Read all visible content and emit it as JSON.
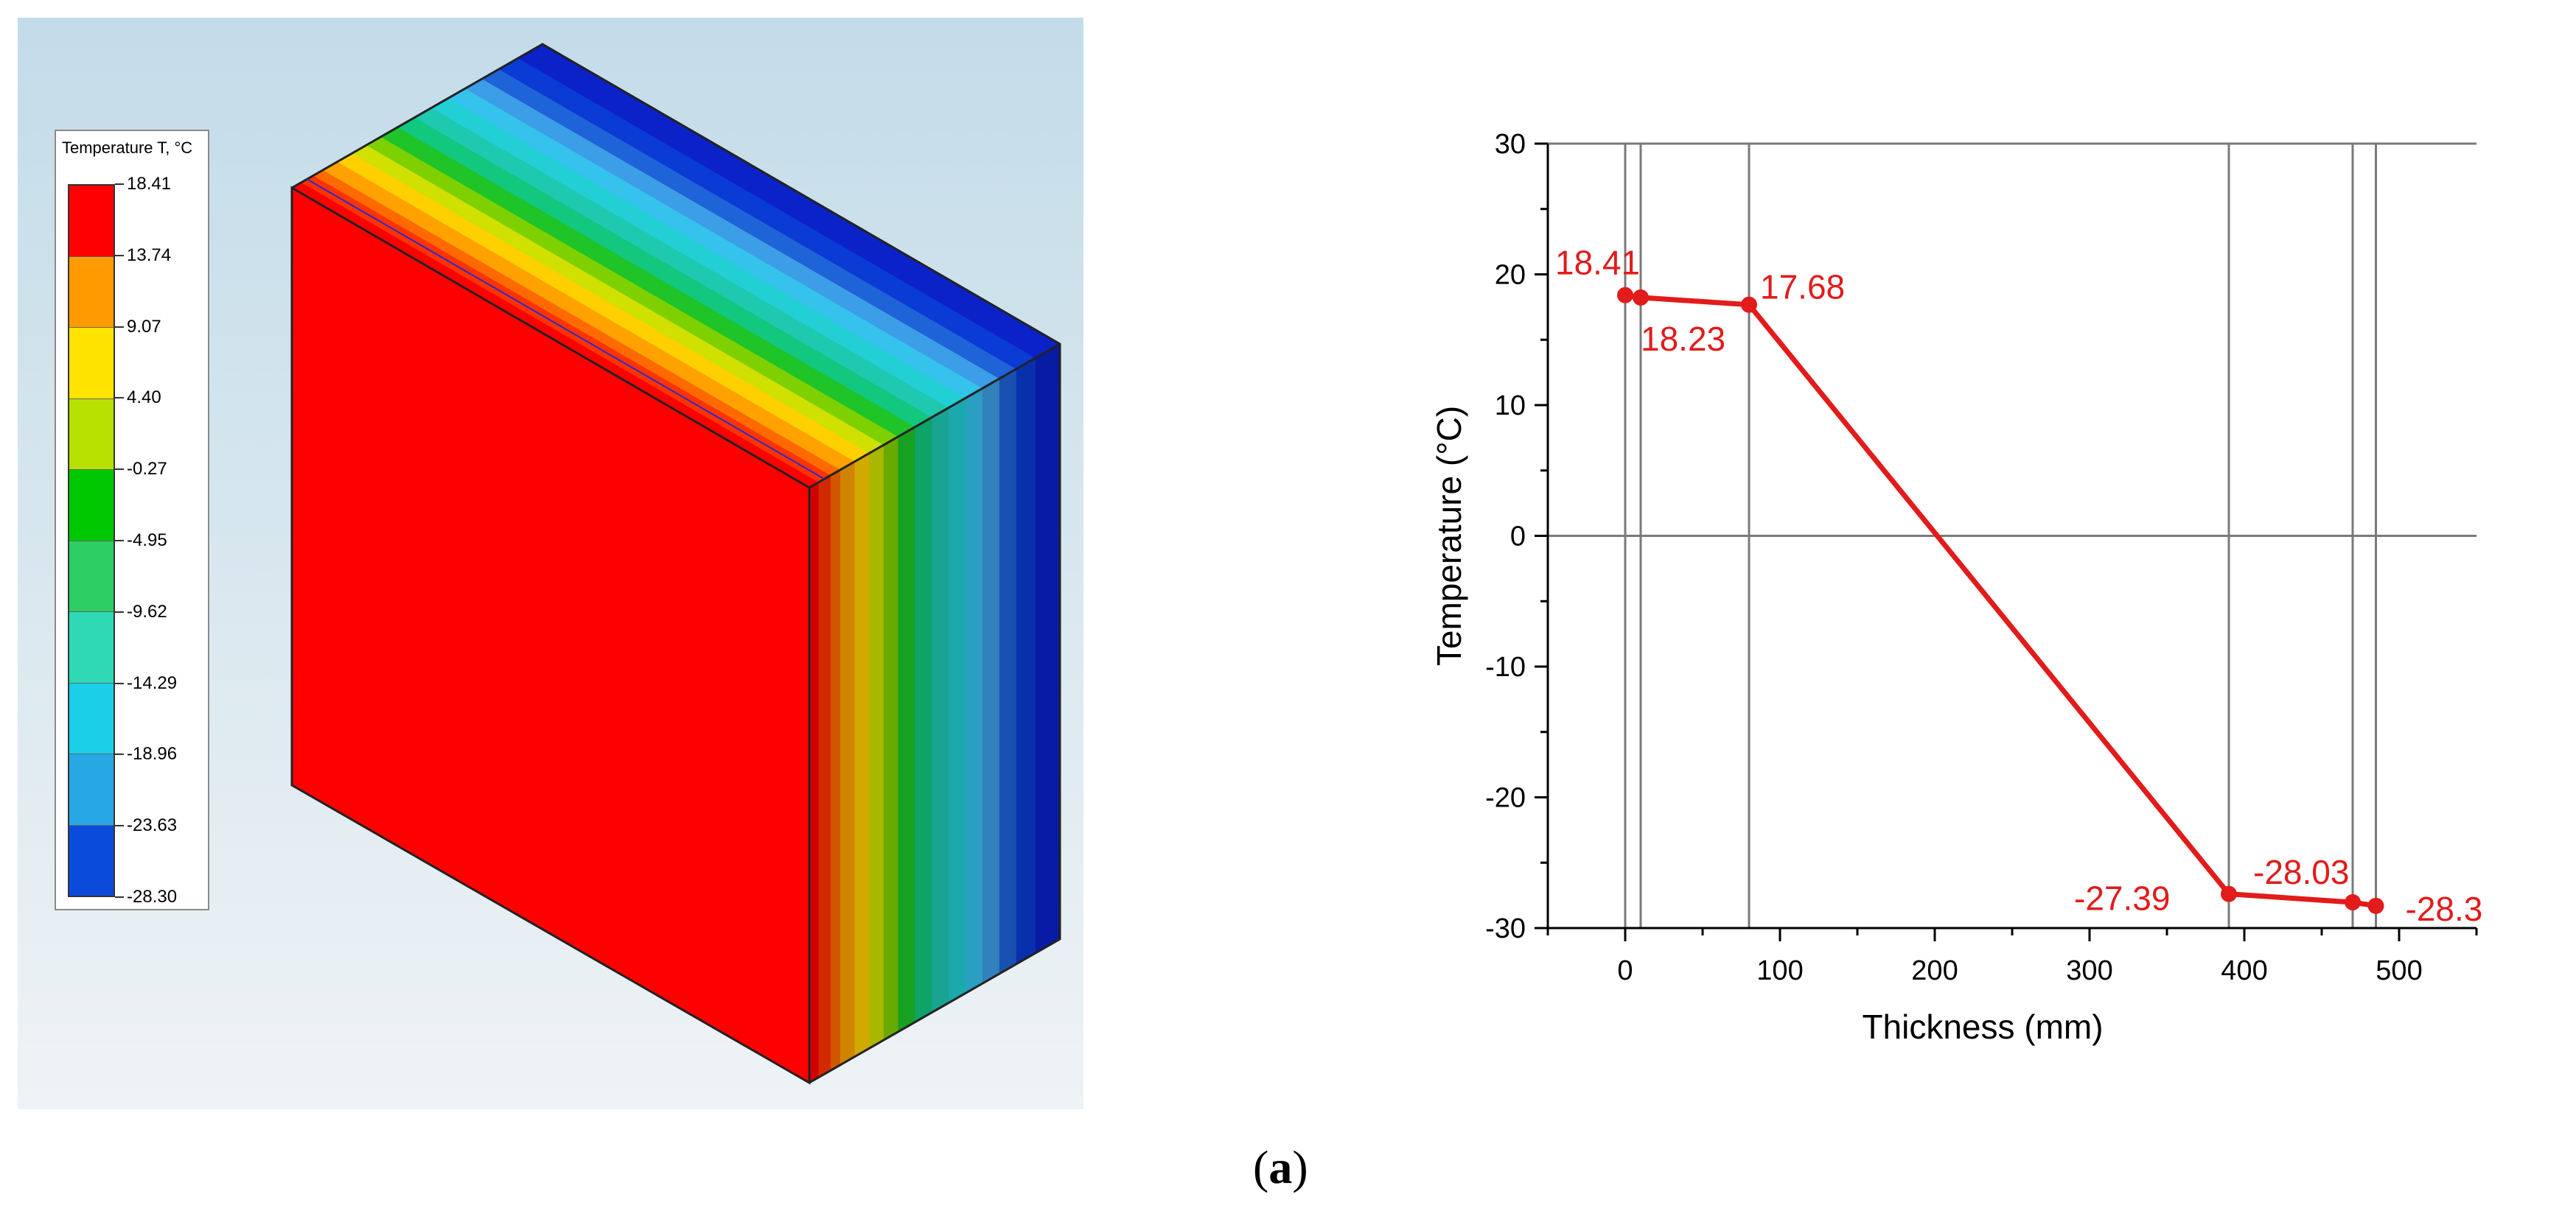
{
  "legend": {
    "title": "Temperature T, °C",
    "labels": [
      "18.41",
      "13.74",
      "9.07",
      "4.40",
      "-0.27",
      "-4.95",
      "-9.62",
      "-14.29",
      "-18.96",
      "-23.63",
      "-28.30"
    ],
    "colors": [
      "#ff0000",
      "#ff9b00",
      "#ffe400",
      "#b7e100",
      "#00c800",
      "#2dcf64",
      "#2fd9b5",
      "#1ad0e8",
      "#27a8e4",
      "#0a4bdb"
    ]
  },
  "model_colors": {
    "front_face": "#ff0000",
    "layers": [
      "#ff0000",
      "#ff3300",
      "#ff6a00",
      "#ffa200",
      "#ffd000",
      "#d0e000",
      "#7fd000",
      "#1ec428",
      "#12c77e",
      "#1ec9b0",
      "#22cfd4",
      "#35c2ec",
      "#3c9ee6",
      "#1f63d8",
      "#0a3bd4",
      "#0a22c8"
    ]
  },
  "chart_data": {
    "type": "line",
    "xlabel": "Thickness (mm)",
    "ylabel": "Temperature (°C)",
    "xlim": [
      -50,
      550
    ],
    "ylim": [
      -30,
      30
    ],
    "xticks": [
      0,
      100,
      200,
      300,
      400,
      500
    ],
    "yticks": [
      -30,
      -20,
      -10,
      0,
      10,
      20,
      30
    ],
    "grid_x": [
      0,
      10,
      80,
      390,
      470,
      485
    ],
    "grid_y": [
      0,
      30
    ],
    "color": "#e21b1b",
    "points": [
      {
        "x": 0,
        "y": 18.41,
        "label": "18.41"
      },
      {
        "x": 10,
        "y": 18.23,
        "label": "18.23"
      },
      {
        "x": 80,
        "y": 17.68,
        "label": "17.68"
      },
      {
        "x": 390,
        "y": -27.39,
        "label": "-27.39"
      },
      {
        "x": 470,
        "y": -28.03,
        "label": "-28.03"
      },
      {
        "x": 485,
        "y": -28.3,
        "label": "-28.3"
      }
    ]
  },
  "caption": {
    "open": "(",
    "letter": "a",
    "close": ")"
  }
}
